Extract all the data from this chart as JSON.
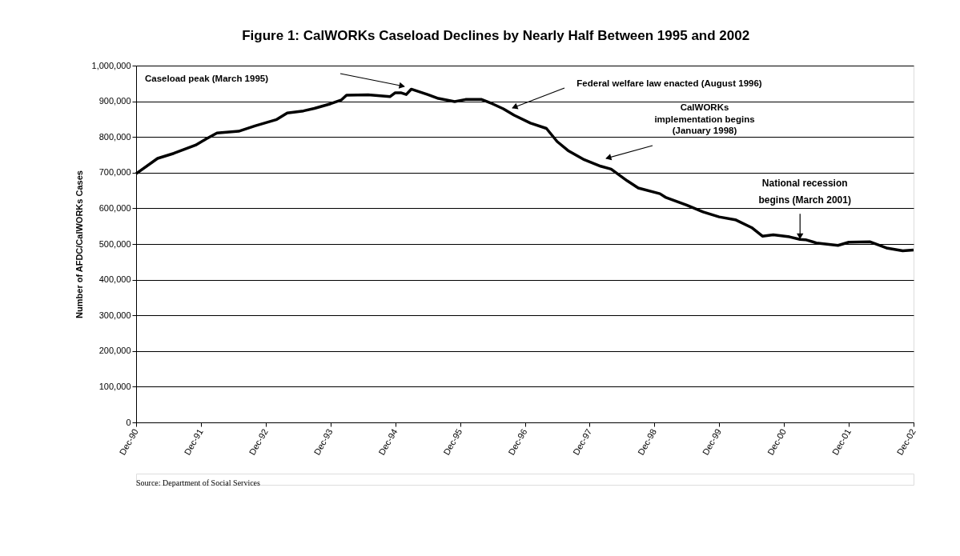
{
  "chart_data": {
    "type": "line",
    "title": "Figure 1: CalWORKs Caseload Declines by Nearly Half Between 1995 and 2002",
    "ylabel": "Number of AFDC/CalWORKs Cases",
    "x": [
      "1990-12",
      "1991-04",
      "1991-07",
      "1991-11",
      "1992-01",
      "1992-03",
      "1992-07",
      "1992-10",
      "1993-02",
      "1993-04",
      "1993-07",
      "1993-09",
      "1993-12",
      "1994-02",
      "1994-03",
      "1994-07",
      "1994-11",
      "1994-12",
      "1995-01",
      "1995-02",
      "1995-03",
      "1995-06",
      "1995-08",
      "1995-11",
      "1996-01",
      "1996-04",
      "1996-06",
      "1996-08",
      "1996-10",
      "1997-01",
      "1997-04",
      "1997-06",
      "1997-08",
      "1997-11",
      "1998-02",
      "1998-04",
      "1998-07",
      "1998-09",
      "1999-01",
      "1999-02",
      "1999-06",
      "1999-09",
      "1999-12",
      "2000-03",
      "2000-06",
      "2000-08",
      "2000-10",
      "2001-01",
      "2001-03",
      "2001-04",
      "2001-06",
      "2001-10",
      "2001-12",
      "2002-04",
      "2002-07",
      "2002-10",
      "2002-12"
    ],
    "series": [
      {
        "color": "#000000",
        "values": [
          697000,
          740000,
          754000,
          777000,
          795000,
          811000,
          816000,
          831000,
          849000,
          867000,
          873000,
          880000,
          893000,
          904000,
          917000,
          918000,
          913000,
          924000,
          924000,
          919000,
          934000,
          919000,
          908000,
          899000,
          905000,
          905000,
          893000,
          879000,
          861000,
          839000,
          824000,
          787000,
          762000,
          736000,
          718000,
          710000,
          677000,
          657000,
          641000,
          631000,
          609000,
          590000,
          576000,
          568000,
          546000,
          522000,
          526000,
          520000,
          513000,
          512000,
          503000,
          496000,
          505000,
          506000,
          489000,
          481000,
          483000
        ]
      }
    ],
    "xlim": [
      "1990-12",
      "2002-12"
    ],
    "xticks": [
      {
        "value": "1990-12",
        "label": "Dec-90"
      },
      {
        "value": "1991-12",
        "label": "Dec-91"
      },
      {
        "value": "1992-12",
        "label": "Dec-92"
      },
      {
        "value": "1993-12",
        "label": "Dec-93"
      },
      {
        "value": "1994-12",
        "label": "Dec-94"
      },
      {
        "value": "1995-12",
        "label": "Dec-95"
      },
      {
        "value": "1996-12",
        "label": "Dec-96"
      },
      {
        "value": "1997-12",
        "label": "Dec-97"
      },
      {
        "value": "1998-12",
        "label": "Dec-98"
      },
      {
        "value": "1999-12",
        "label": "Dec-99"
      },
      {
        "value": "2000-12",
        "label": "Dec-00"
      },
      {
        "value": "2001-12",
        "label": "Dec-01"
      },
      {
        "value": "2002-12",
        "label": "Dec-02"
      }
    ],
    "ylim": [
      0,
      1000000
    ],
    "yticks": [
      {
        "value": 0,
        "label": "0"
      },
      {
        "value": 100000,
        "label": "100,000"
      },
      {
        "value": 200000,
        "label": "200,000"
      },
      {
        "value": 300000,
        "label": "300,000"
      },
      {
        "value": 400000,
        "label": "400,000"
      },
      {
        "value": 500000,
        "label": "500,000"
      },
      {
        "value": 600000,
        "label": "600,000"
      },
      {
        "value": 700000,
        "label": "700,000"
      },
      {
        "value": 800000,
        "label": "800,000"
      },
      {
        "value": 900000,
        "label": "900,000"
      },
      {
        "value": 1000000,
        "label": "1,000,000"
      }
    ],
    "grid": "y",
    "marker": "none",
    "line_style": "solid",
    "annotations": [
      "Caseload peak (March 1995)",
      "Federal welfare law enacted (August 1996)",
      "CalWORKs\nimplementation begins\n(January 1998)",
      {
        "text": "National recession\nbegins (March 2001)",
        "x": "2001-03",
        "y": 513000
      },
      "Source: Department of Social Services"
    ]
  }
}
